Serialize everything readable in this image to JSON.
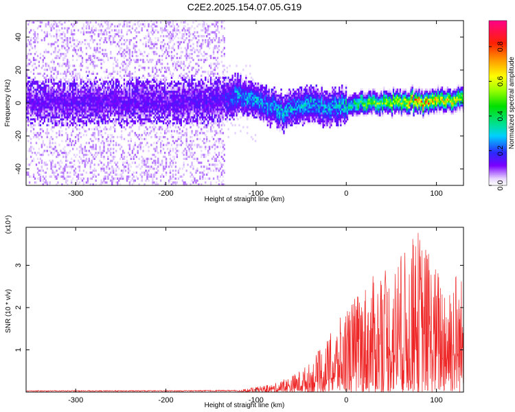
{
  "title": "C2E2.2025.154.07.05.G19",
  "chart_data": [
    {
      "type": "heatmap",
      "xlabel": "Height of straight line (km)",
      "ylabel": "Frequency (Hz)",
      "xlim": [
        -355,
        130
      ],
      "ylim": [
        -50,
        50
      ],
      "xticks": [
        -300,
        -200,
        -100,
        0,
        100
      ],
      "xtick_labels": [
        "-300",
        "-200",
        "-100",
        "0",
        "100"
      ],
      "yticks": [
        -40,
        -20,
        0,
        20,
        40
      ],
      "ytick_labels": [
        "-40",
        "-20",
        "0",
        "20",
        "40"
      ],
      "colorbar": {
        "label": "Normalized spectral amplitude",
        "range": [
          0,
          0.95
        ],
        "ticks": [
          0,
          0.2,
          0.4,
          0.6,
          0.8
        ],
        "tick_labels": [
          "0.0",
          "0.2",
          "0.4",
          "0.6",
          "0.8"
        ]
      },
      "ridge": {
        "description_points_x": [
          -355,
          -300,
          -200,
          -140,
          -120,
          -100,
          -80,
          -70,
          -60,
          -40,
          -20,
          0,
          20,
          50,
          80,
          100,
          130
        ],
        "center_freq": [
          0,
          0,
          0,
          1,
          4,
          1,
          -3,
          -7,
          -3,
          -1,
          -4,
          -3,
          0,
          0,
          0,
          0,
          2
        ],
        "amplitude": [
          0.12,
          0.14,
          0.14,
          0.16,
          0.3,
          0.3,
          0.3,
          0.32,
          0.3,
          0.32,
          0.3,
          0.38,
          0.55,
          0.6,
          0.8,
          0.7,
          0.6
        ]
      },
      "grid": false
    },
    {
      "type": "line",
      "xlabel": "Height of straight line (km)",
      "ylabel": "SNR (10 * v/v)",
      "y_multiplier_label": "(x10⁴)",
      "xlim": [
        -355,
        130
      ],
      "ylim": [
        0,
        3.9
      ],
      "xticks": [
        -300,
        -200,
        -100,
        0,
        100
      ],
      "xtick_labels": [
        "-300",
        "-200",
        "-100",
        "0",
        "100"
      ],
      "yticks": [
        1,
        2,
        3
      ],
      "ytick_labels": [
        "1",
        "2",
        "3"
      ],
      "series": [
        {
          "color": "#ee2222",
          "envelope_x": [
            -355,
            -200,
            -120,
            -100,
            -80,
            -60,
            -40,
            -20,
            0,
            20,
            40,
            60,
            80,
            100,
            120,
            130
          ],
          "envelope_max": [
            0.04,
            0.04,
            0.05,
            0.12,
            0.2,
            0.4,
            0.7,
            1.3,
            2.0,
            2.6,
            2.9,
            3.2,
            3.9,
            3.0,
            3.1,
            2.7
          ]
        }
      ],
      "grid": false
    }
  ]
}
